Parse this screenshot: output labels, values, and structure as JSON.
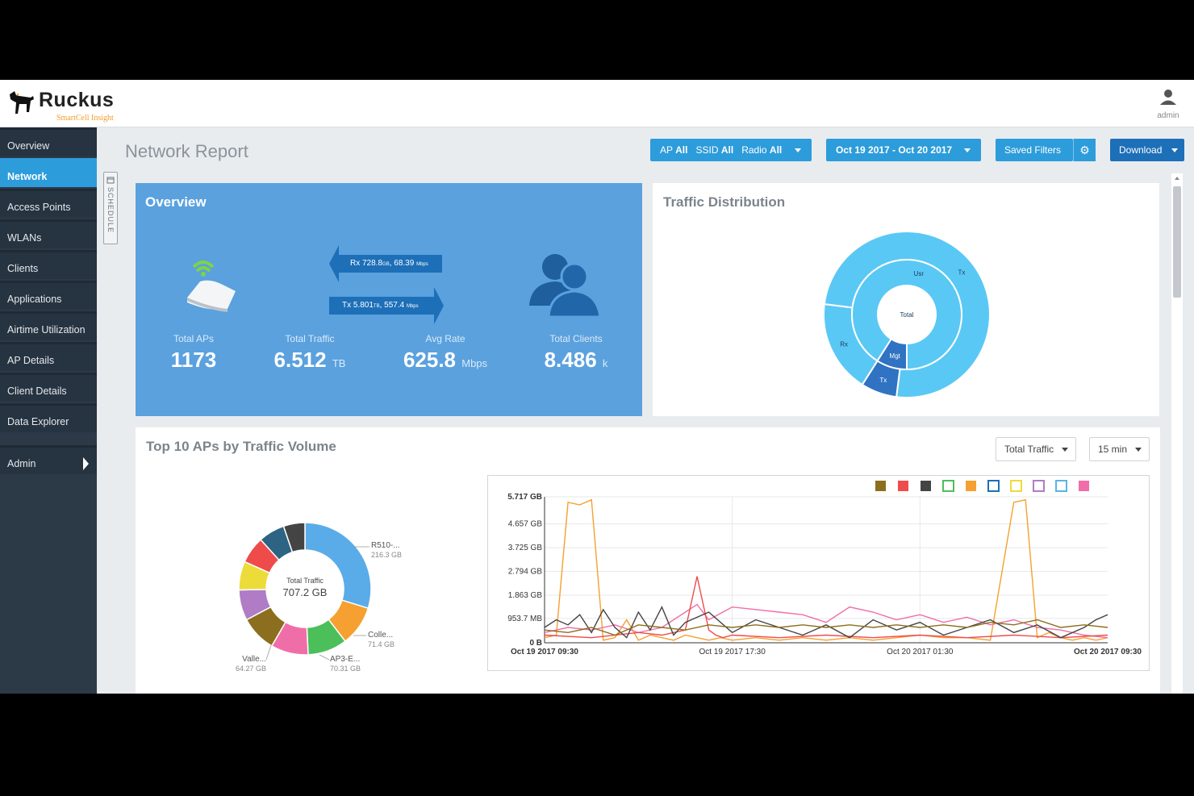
{
  "brand": {
    "name": "Ruckus",
    "subtitle": "SmartCell Insight"
  },
  "user": {
    "label": "admin"
  },
  "sidebar": {
    "items": [
      {
        "label": "Overview"
      },
      {
        "label": "Network"
      },
      {
        "label": "Access Points"
      },
      {
        "label": "WLANs"
      },
      {
        "label": "Clients"
      },
      {
        "label": "Applications"
      },
      {
        "label": "Airtime Utilization"
      },
      {
        "label": "AP Details"
      },
      {
        "label": "Client Details"
      },
      {
        "label": "Data Explorer"
      },
      {
        "label": "Admin"
      }
    ],
    "active": "Network"
  },
  "page": {
    "title": "Network Report"
  },
  "filters": {
    "ap_label": "AP",
    "ap_value": "All",
    "ssid_label": "SSID",
    "ssid_value": "All",
    "radio_label": "Radio",
    "radio_value": "All",
    "date_range": "Oct 19 2017 - Oct 20 2017",
    "saved_filters": "Saved Filters",
    "download": "Download"
  },
  "schedule": {
    "label": "SCHEDULE"
  },
  "overview": {
    "title": "Overview",
    "rx_text": "Rx 728.8",
    "rx_unit1": "GB",
    "rx_rate": ", 68.39",
    "rx_unit2": "Mbps",
    "tx_text": "Tx 5.801",
    "tx_unit1": "TB",
    "tx_rate": ", 557.4",
    "tx_unit2": "Mbps",
    "stats": [
      {
        "label": "Total APs",
        "value": "1173",
        "unit": ""
      },
      {
        "label": "Total Traffic",
        "value": "6.512",
        "unit": "TB"
      },
      {
        "label": "Avg Rate",
        "value": "625.8",
        "unit": "Mbps"
      },
      {
        "label": "Total Clients",
        "value": "8.486",
        "unit": "k"
      }
    ]
  },
  "traffic_distribution": {
    "title": "Traffic Distribution",
    "center": "Total",
    "inner": [
      {
        "label": "Usr",
        "value": 0.91
      },
      {
        "label": "Mgt",
        "value": 0.09
      }
    ],
    "outer": [
      {
        "label": "Tx",
        "value": 0.75
      },
      {
        "label": "Tx",
        "value": 0.07
      },
      {
        "label": "Rx",
        "value": 0.18
      }
    ],
    "colors": {
      "light": "#5ac8f5",
      "dark": "#2f73c2"
    }
  },
  "top10": {
    "title": "Top 10 APs by Traffic Volume",
    "metric_select": "Total Traffic",
    "interval_select": "15 min",
    "donut_center_label": "Total Traffic",
    "donut_center_value": "707.2 GB",
    "callouts": [
      {
        "name": "R510-...",
        "value": "216.3 GB"
      },
      {
        "name": "Colle...",
        "value": "71.4 GB"
      },
      {
        "name": "AP3-E...",
        "value": "70.31 GB"
      },
      {
        "name": "Valle...",
        "value": "64.27 GB"
      }
    ]
  },
  "chart_data": {
    "type": "line",
    "y_tick_labels": [
      "5.717 GB",
      "4.657 GB",
      "3.725 GB",
      "2.794 GB",
      "1.863 GB",
      "953.7 MB",
      "0 B"
    ],
    "y_ticks_gb": [
      5.717,
      4.657,
      3.725,
      2.794,
      1.863,
      0.9537,
      0
    ],
    "ylim": [
      0,
      5.717
    ],
    "x_tick_labels": [
      "Oct 19 2017 09:30",
      "Oct 19 2017 17:30",
      "Oct 20 2017 01:30",
      "Oct 20 2017 09:30"
    ],
    "x_tick_hours": [
      0,
      8,
      16,
      24
    ],
    "xlim": [
      0,
      24
    ],
    "legend_colors": [
      "#8b6f1e",
      "#ef4b4b",
      "#444444",
      "#4cbf5a",
      "#f5a030",
      "#1d6fb8",
      "#ecdc3a",
      "#b07cc6",
      "#5ab4e5",
      "#f06ea8"
    ],
    "legend_hollow": [
      false,
      false,
      false,
      true,
      false,
      true,
      true,
      true,
      true,
      false
    ],
    "series": [
      {
        "color": "#f5a030",
        "x": [
          0,
          0.5,
          1,
          1.5,
          2,
          2.5,
          3,
          3.5,
          4,
          4.5,
          5,
          5.5,
          6,
          6.5,
          7,
          7.5,
          8,
          9,
          10,
          11,
          12,
          13,
          14,
          15,
          16,
          17,
          18,
          19,
          20,
          20.5,
          21,
          21.5,
          22,
          22.5,
          23,
          23.5,
          24
        ],
        "y": [
          0.2,
          0.3,
          5.5,
          5.4,
          5.6,
          0.1,
          0.2,
          0.9,
          0.1,
          0.3,
          0.2,
          0.1,
          0.3,
          0.2,
          0.1,
          0.2,
          0.1,
          0.2,
          0.1,
          0.2,
          0.1,
          0.2,
          0.1,
          0.2,
          0.3,
          0.2,
          0.2,
          0.1,
          5.5,
          5.6,
          0.2,
          0.4,
          0.2,
          0.1,
          0.2,
          0.1,
          0.2
        ]
      },
      {
        "color": "#f06ea8",
        "x": [
          0,
          1,
          2,
          3,
          4,
          5,
          5.5,
          6,
          6.5,
          7,
          8,
          9,
          10,
          11,
          12,
          13,
          14,
          15,
          16,
          17,
          18,
          19,
          20,
          21,
          22,
          23,
          24
        ],
        "y": [
          0.4,
          0.6,
          0.5,
          0.7,
          0.4,
          0.6,
          0.9,
          1.2,
          1.5,
          0.9,
          1.4,
          1.3,
          1.2,
          1.1,
          0.8,
          1.4,
          1.2,
          0.9,
          1.1,
          0.8,
          1.0,
          0.7,
          0.9,
          0.6,
          0.5,
          0.3,
          0.2
        ]
      },
      {
        "color": "#ef4b4b",
        "x": [
          0,
          2,
          4,
          5,
          6,
          6.5,
          7,
          7.3,
          7.6,
          8,
          10,
          12,
          14,
          16,
          18,
          20,
          22,
          24
        ],
        "y": [
          0.3,
          0.2,
          0.4,
          0.3,
          0.5,
          2.6,
          0.5,
          0.3,
          0.2,
          0.3,
          0.2,
          0.3,
          0.2,
          0.3,
          0.2,
          0.3,
          0.2,
          0.3
        ]
      },
      {
        "color": "#444444",
        "x": [
          0,
          0.5,
          1,
          1.5,
          2,
          2.5,
          3,
          3.5,
          4,
          4.5,
          5,
          5.5,
          6,
          7,
          8,
          9,
          10,
          11,
          12,
          13,
          14,
          15,
          16,
          17,
          18,
          19,
          20,
          21,
          22,
          23,
          23.5,
          24
        ],
        "y": [
          0.6,
          0.9,
          0.7,
          1.1,
          0.4,
          1.3,
          0.6,
          0.2,
          1.2,
          0.5,
          1.4,
          0.3,
          0.8,
          1.2,
          0.4,
          0.9,
          0.6,
          0.3,
          0.7,
          0.2,
          0.9,
          0.5,
          0.8,
          0.3,
          0.6,
          0.9,
          0.4,
          0.7,
          0.2,
          0.6,
          0.9,
          1.1
        ]
      },
      {
        "color": "#8b6f1e",
        "x": [
          0,
          1,
          2,
          3,
          4,
          5,
          6,
          7,
          8,
          9,
          10,
          11,
          12,
          13,
          14,
          15,
          16,
          17,
          18,
          19,
          20,
          21,
          22,
          23,
          24
        ],
        "y": [
          0.5,
          0.4,
          0.6,
          0.3,
          0.7,
          0.6,
          0.5,
          0.7,
          0.6,
          0.7,
          0.6,
          0.7,
          0.6,
          0.7,
          0.6,
          0.7,
          0.6,
          0.7,
          0.6,
          0.8,
          0.7,
          0.9,
          0.6,
          0.7,
          0.6
        ]
      }
    ]
  }
}
